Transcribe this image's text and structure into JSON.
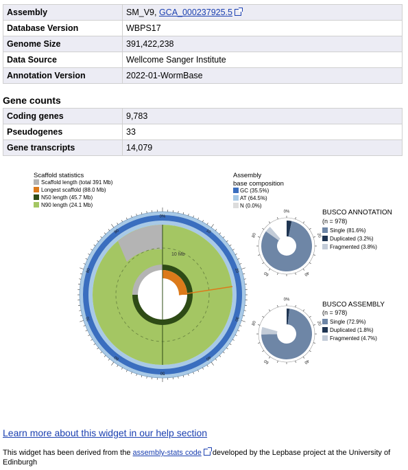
{
  "assembly_table": {
    "rows": [
      {
        "label": "Assembly",
        "value": "SM_V9, ",
        "link": "GCA_000237925.5"
      },
      {
        "label": "Database Version",
        "value": "WBPS17"
      },
      {
        "label": "Genome Size",
        "value": "391,422,238"
      },
      {
        "label": "Data Source",
        "value": "Wellcome Sanger Institute"
      },
      {
        "label": "Annotation Version",
        "value": "2022-01-WormBase"
      }
    ]
  },
  "gene_counts": {
    "heading": "Gene counts",
    "rows": [
      {
        "label": "Coding genes",
        "value": "9,783"
      },
      {
        "label": "Pseudogenes",
        "value": "33"
      },
      {
        "label": "Gene transcripts",
        "value": "14,079"
      }
    ]
  },
  "colors": {
    "scaffold": "#b4b4b4",
    "longest": "#dc7a1a",
    "n50": "#2e4b16",
    "n90": "#a4c663",
    "gc": "#3a6ebf",
    "at": "#a8c9e6",
    "n": "#dddddd",
    "busco_single": "#6e86a6",
    "busco_dup": "#1f3552",
    "busco_frag": "#c3ccd8"
  },
  "scaffold_legend": {
    "title": "Scaffold statistics",
    "items": [
      {
        "label": "Scaffold length (total 391 Mb)",
        "color": "#b4b4b4"
      },
      {
        "label": "Longest scaffold (88.0 Mb)",
        "color": "#dc7a1a"
      },
      {
        "label": "N50 length (45.7 Mb)",
        "color": "#2e4b16"
      },
      {
        "label": "N90 length (24.1 Mb)",
        "color": "#a4c663"
      }
    ]
  },
  "composition_legend": {
    "title_line1": "Assembly",
    "title_line2": "base composition",
    "items": [
      {
        "label": "GC (35.5%)",
        "color": "#3a6ebf"
      },
      {
        "label": "AT (64.5%)",
        "color": "#a8c9e6"
      },
      {
        "label": "N (0.0%)",
        "color": "#dddddd"
      }
    ]
  },
  "snail_labels": {
    "scale_marker": "10 Mb",
    "outer_ticks": [
      "0%",
      "10",
      "20",
      "30",
      "40",
      "50",
      "60",
      "70",
      "80",
      "90"
    ]
  },
  "busco_annotation": {
    "title": "BUSCO ANNOTATION",
    "n": "(n = 978)",
    "items": [
      {
        "label": "Single (81.6%)",
        "color": "#6e86a6",
        "pct": 81.6
      },
      {
        "label": "Duplicated (3.2%)",
        "color": "#1f3552",
        "pct": 3.2
      },
      {
        "label": "Fragmented (3.8%)",
        "color": "#c3ccd8",
        "pct": 3.8
      }
    ],
    "ticks": [
      "0%",
      "20",
      "40",
      "60",
      "80"
    ]
  },
  "busco_assembly": {
    "title": "BUSCO ASSEMBLY",
    "n": "(n = 978)",
    "items": [
      {
        "label": "Single (72.9%)",
        "color": "#6e86a6",
        "pct": 72.9
      },
      {
        "label": "Duplicated (1.8%)",
        "color": "#1f3552",
        "pct": 1.8
      },
      {
        "label": "Fragmented (4.7%)",
        "color": "#c3ccd8",
        "pct": 4.7
      }
    ],
    "ticks": [
      "0%",
      "20",
      "40",
      "60",
      "80"
    ]
  },
  "help_link": "Learn more about this widget in our help section",
  "footer": {
    "prefix": "This widget has been derived from the ",
    "link": "assembly-stats code",
    "suffix": " developed by the Lepbase project at the University of Edinburgh"
  }
}
